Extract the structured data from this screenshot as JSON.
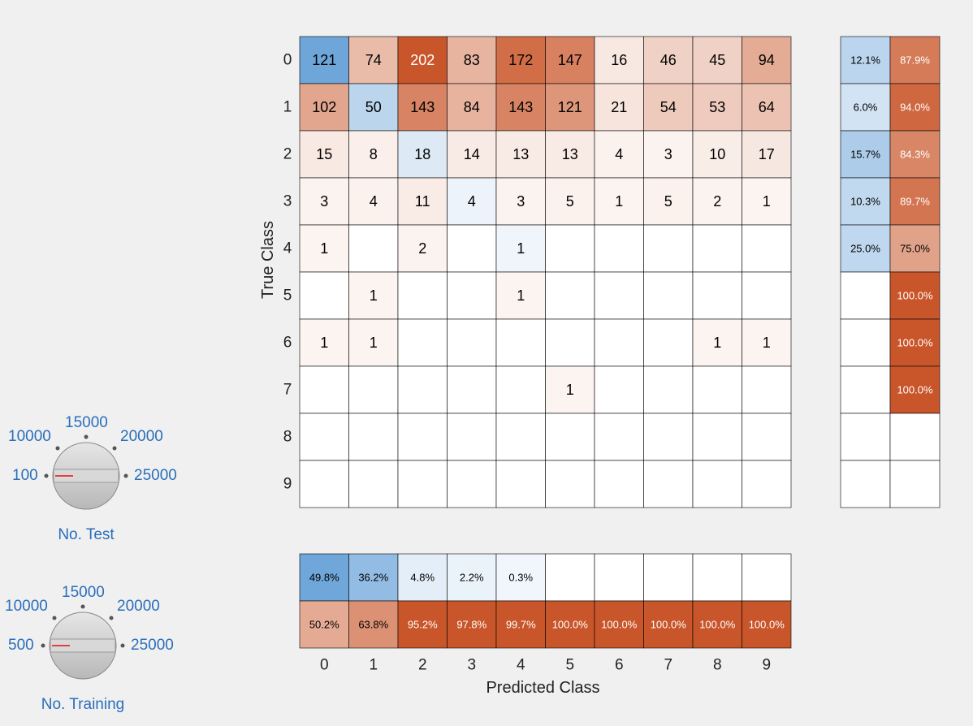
{
  "confusion_chart": {
    "ylabel": "True Class",
    "xlabel": "Predicted Class",
    "classes": [
      "0",
      "1",
      "2",
      "3",
      "4",
      "5",
      "6",
      "7",
      "8",
      "9"
    ],
    "matrix": [
      [
        121,
        74,
        202,
        83,
        172,
        147,
        16,
        46,
        45,
        94
      ],
      [
        102,
        50,
        143,
        84,
        143,
        121,
        21,
        54,
        53,
        64
      ],
      [
        15,
        8,
        18,
        14,
        13,
        13,
        4,
        3,
        10,
        17
      ],
      [
        3,
        4,
        11,
        4,
        3,
        5,
        1,
        5,
        2,
        1
      ],
      [
        1,
        null,
        2,
        null,
        1,
        null,
        null,
        null,
        null,
        null
      ],
      [
        null,
        1,
        null,
        null,
        1,
        null,
        null,
        null,
        null,
        null
      ],
      [
        1,
        1,
        null,
        null,
        null,
        null,
        null,
        null,
        1,
        1
      ],
      [
        null,
        null,
        null,
        null,
        null,
        1,
        null,
        null,
        null,
        null
      ],
      [
        null,
        null,
        null,
        null,
        null,
        null,
        null,
        null,
        null,
        null
      ],
      [
        null,
        null,
        null,
        null,
        null,
        null,
        null,
        null,
        null,
        null
      ]
    ],
    "row_summary": [
      {
        "correct": "12.1%",
        "incorrect": "87.9%",
        "c": 12.1,
        "i": 87.9
      },
      {
        "correct": "6.0%",
        "incorrect": "94.0%",
        "c": 6.0,
        "i": 94.0
      },
      {
        "correct": "15.7%",
        "incorrect": "84.3%",
        "c": 15.7,
        "i": 84.3
      },
      {
        "correct": "10.3%",
        "incorrect": "89.7%",
        "c": 10.3,
        "i": 89.7
      },
      {
        "correct": "25.0%",
        "incorrect": "75.0%",
        "c": 25.0,
        "i": 75.0
      },
      {
        "correct": "",
        "incorrect": "100.0%",
        "c": 0,
        "i": 100
      },
      {
        "correct": "",
        "incorrect": "100.0%",
        "c": 0,
        "i": 100
      },
      {
        "correct": "",
        "incorrect": "100.0%",
        "c": 0,
        "i": 100
      },
      {
        "correct": "",
        "incorrect": "",
        "c": 0,
        "i": 0
      },
      {
        "correct": "",
        "incorrect": "",
        "c": 0,
        "i": 0
      }
    ],
    "column_summary": [
      {
        "correct": "49.8%",
        "incorrect": "50.2%",
        "c": 49.8,
        "i": 50.2
      },
      {
        "correct": "36.2%",
        "incorrect": "63.8%",
        "c": 36.2,
        "i": 63.8
      },
      {
        "correct": "4.8%",
        "incorrect": "95.2%",
        "c": 4.8,
        "i": 95.2
      },
      {
        "correct": "2.2%",
        "incorrect": "97.8%",
        "c": 2.2,
        "i": 97.8
      },
      {
        "correct": "0.3%",
        "incorrect": "99.7%",
        "c": 0.3,
        "i": 99.7
      },
      {
        "correct": "",
        "incorrect": "100.0%",
        "c": 0,
        "i": 100
      },
      {
        "correct": "",
        "incorrect": "100.0%",
        "c": 0,
        "i": 100
      },
      {
        "correct": "",
        "incorrect": "100.0%",
        "c": 0,
        "i": 100
      },
      {
        "correct": "",
        "incorrect": "100.0%",
        "c": 0,
        "i": 100
      },
      {
        "correct": "",
        "incorrect": "100.0%",
        "c": 0,
        "i": 100
      }
    ],
    "colors": {
      "blue": "#4a90d0",
      "orange": "#c9562a",
      "grid": "#000000"
    }
  },
  "knob_test": {
    "label": "No. Test",
    "ticks": [
      "100",
      "10000",
      "15000",
      "20000",
      "25000"
    ],
    "value": "100"
  },
  "knob_training": {
    "label": "No. Training",
    "ticks": [
      "500",
      "10000",
      "15000",
      "20000",
      "25000"
    ],
    "value": "500"
  }
}
